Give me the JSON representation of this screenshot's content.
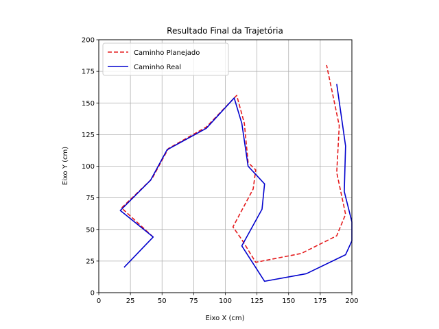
{
  "chart_data": {
    "type": "line",
    "title": "Resultado Final da Trajetória",
    "xlabel": "Eixo X (cm)",
    "ylabel": "Eixo Y (cm)",
    "xlim": [
      0,
      200
    ],
    "ylim": [
      0,
      200
    ],
    "xticks": [
      0,
      25,
      50,
      75,
      100,
      125,
      150,
      175,
      200
    ],
    "yticks": [
      0,
      25,
      50,
      75,
      100,
      125,
      150,
      175,
      200
    ],
    "grid": true,
    "legend": "top-left",
    "series": [
      {
        "name": "Caminho Planejado",
        "color": "#e41a1c",
        "style": "dashed",
        "points": [
          [
            43,
            44
          ],
          [
            18,
            67
          ],
          [
            42,
            90
          ],
          [
            55,
            114
          ],
          [
            85,
            131
          ],
          [
            109,
            156
          ],
          [
            115,
            134
          ],
          [
            118,
            103
          ],
          [
            124,
            97
          ],
          [
            122,
            82
          ],
          [
            106,
            52
          ],
          [
            113,
            42
          ],
          [
            124,
            24
          ],
          [
            160,
            31
          ],
          [
            188,
            45
          ],
          [
            195,
            62
          ],
          [
            188,
            95
          ],
          [
            190,
            132
          ],
          [
            180,
            180
          ]
        ]
      },
      {
        "name": "Caminho Real",
        "color": "#0000cd",
        "style": "solid",
        "points": [
          [
            20,
            20
          ],
          [
            43,
            44
          ],
          [
            17,
            65
          ],
          [
            41,
            89
          ],
          [
            54,
            113
          ],
          [
            85,
            130
          ],
          [
            107,
            154
          ],
          [
            113,
            134
          ],
          [
            118,
            100
          ],
          [
            131,
            86
          ],
          [
            129,
            66
          ],
          [
            113,
            37
          ],
          [
            131,
            9
          ],
          [
            164,
            15
          ],
          [
            195,
            30
          ],
          [
            200,
            41
          ],
          [
            200,
            56
          ],
          [
            194,
            80
          ],
          [
            195,
            116
          ],
          [
            188,
            165
          ]
        ]
      }
    ]
  }
}
